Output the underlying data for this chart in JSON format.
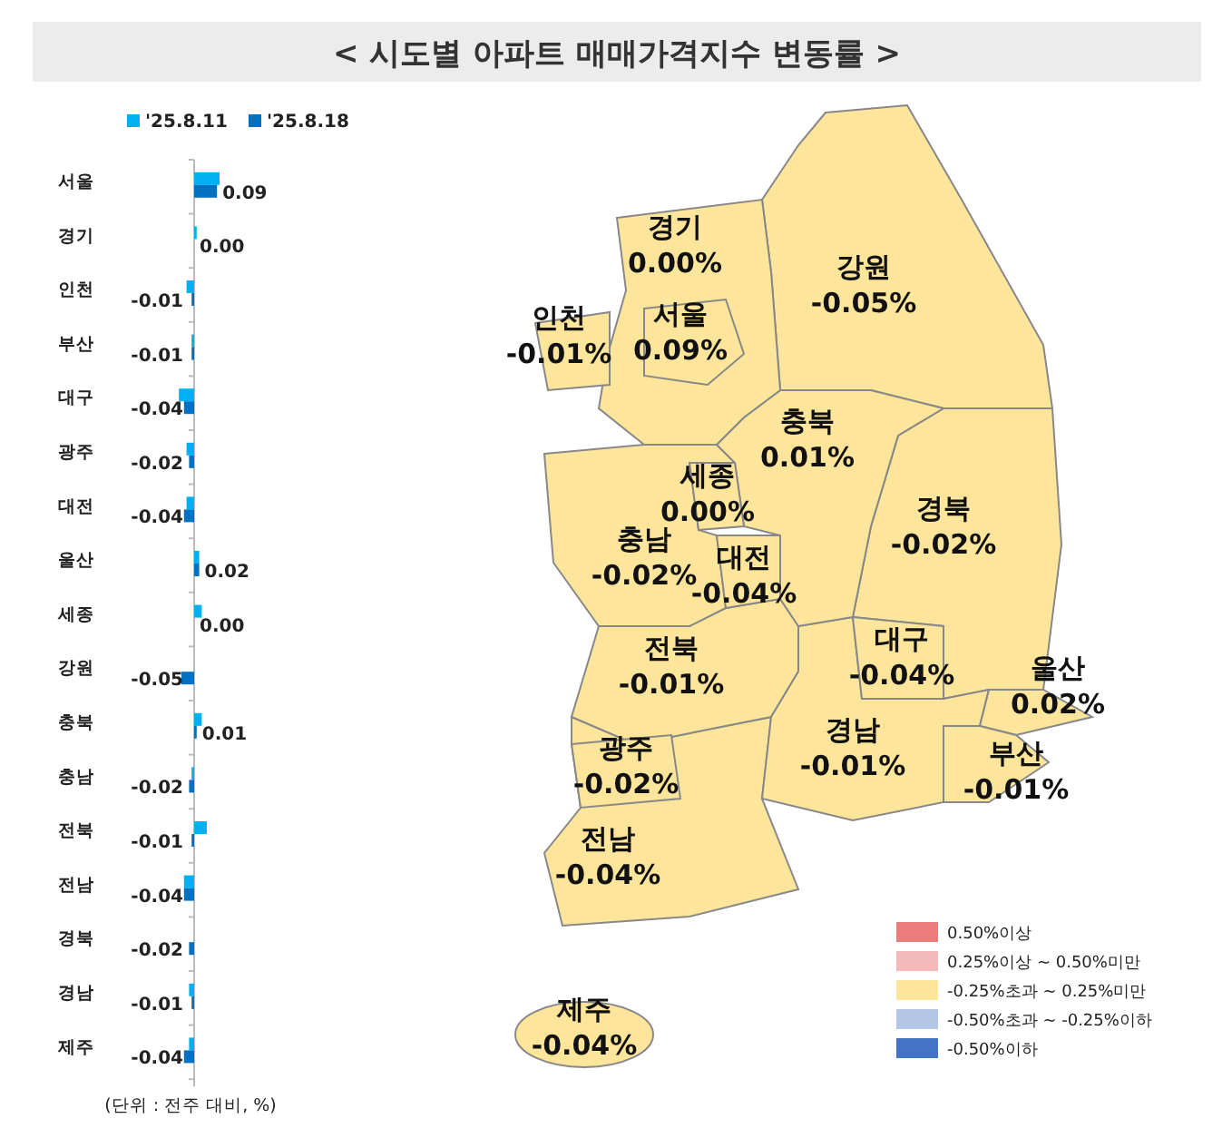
{
  "chart_data": [
    {
      "type": "bar",
      "orientation": "horizontal",
      "categories": [
        "서울",
        "경기",
        "인천",
        "부산",
        "대구",
        "광주",
        "대전",
        "울산",
        "세종",
        "강원",
        "충북",
        "충남",
        "전북",
        "전남",
        "경북",
        "경남",
        "제주"
      ],
      "series": [
        {
          "name": "'25.8.11",
          "color": "#00b0f0",
          "values": [
            0.1,
            0.01,
            -0.03,
            -0.01,
            -0.06,
            -0.03,
            -0.03,
            0.02,
            0.03,
            0.0,
            0.03,
            -0.01,
            0.05,
            -0.04,
            0.0,
            -0.02,
            -0.02
          ]
        },
        {
          "name": "'25.8.18",
          "color": "#0070c0",
          "values": [
            0.09,
            0.0,
            -0.01,
            -0.01,
            -0.04,
            -0.02,
            -0.04,
            0.02,
            0.0,
            -0.05,
            0.01,
            -0.02,
            -0.01,
            -0.04,
            -0.02,
            -0.01,
            -0.04
          ],
          "value_labels": [
            "0.09",
            "0.00",
            "-0.01",
            "-0.01",
            "-0.04",
            "-0.02",
            "-0.04",
            "0.02",
            "0.00",
            "-0.05",
            "0.01",
            "-0.02",
            "-0.01",
            "-0.04",
            "-0.02",
            "-0.01",
            "-0.04"
          ]
        }
      ],
      "legend": "top",
      "annotations": [
        "(단위 : 전주 대비, %)"
      ]
    },
    {
      "type": "other",
      "title": "< 시도별 아파트 매매가격지수 변동률 >",
      "categories": [
        "서울",
        "경기",
        "인천",
        "부산",
        "대구",
        "광주",
        "대전",
        "울산",
        "세종",
        "강원",
        "충북",
        "충남",
        "전북",
        "전남",
        "경북",
        "경남",
        "제주"
      ],
      "legend": "bottom right",
      "series": [
        {
          "name": "0.50%이상",
          "color": "#ec7b7b",
          "values": [
            null,
            null,
            null,
            null,
            null,
            null,
            null,
            null,
            null,
            null,
            null,
            null,
            null,
            null,
            null,
            null,
            null
          ]
        },
        {
          "name": "0.25%이상 ~ 0.50%미만",
          "color": "#f4b9b9",
          "values": [
            null,
            null,
            null,
            null,
            null,
            null,
            null,
            null,
            null,
            null,
            null,
            null,
            null,
            null,
            null,
            null,
            null
          ]
        },
        {
          "name": "-0.25%초과 ~ 0.25%미만",
          "color": "#fde59b",
          "values": [
            0.09,
            0.0,
            -0.01,
            -0.01,
            -0.04,
            -0.02,
            -0.04,
            0.02,
            0.0,
            -0.05,
            0.01,
            -0.02,
            -0.01,
            -0.04,
            -0.02,
            -0.01,
            -0.04
          ],
          "value_labels": [
            "0.09%",
            "0.00%",
            "-0.01%",
            "-0.01%",
            "-0.04%",
            "-0.02%",
            "-0.04%",
            "0.02%",
            "0.00%",
            "-0.05%",
            "0.01%",
            "-0.02%",
            "-0.01%",
            "-0.04%",
            "-0.02%",
            "-0.01%",
            "-0.04%"
          ]
        },
        {
          "name": "-0.50%초과 ~  -0.25%이하",
          "color": "#b4c7e7",
          "values": [
            null,
            null,
            null,
            null,
            null,
            null,
            null,
            null,
            null,
            null,
            null,
            null,
            null,
            null,
            null,
            null,
            null
          ]
        },
        {
          "name": "-0.50%이하",
          "color": "#4472c4",
          "values": [
            null,
            null,
            null,
            null,
            null,
            null,
            null,
            null,
            null,
            null,
            null,
            null,
            null,
            null,
            null,
            null,
            null
          ]
        }
      ]
    }
  ]
}
